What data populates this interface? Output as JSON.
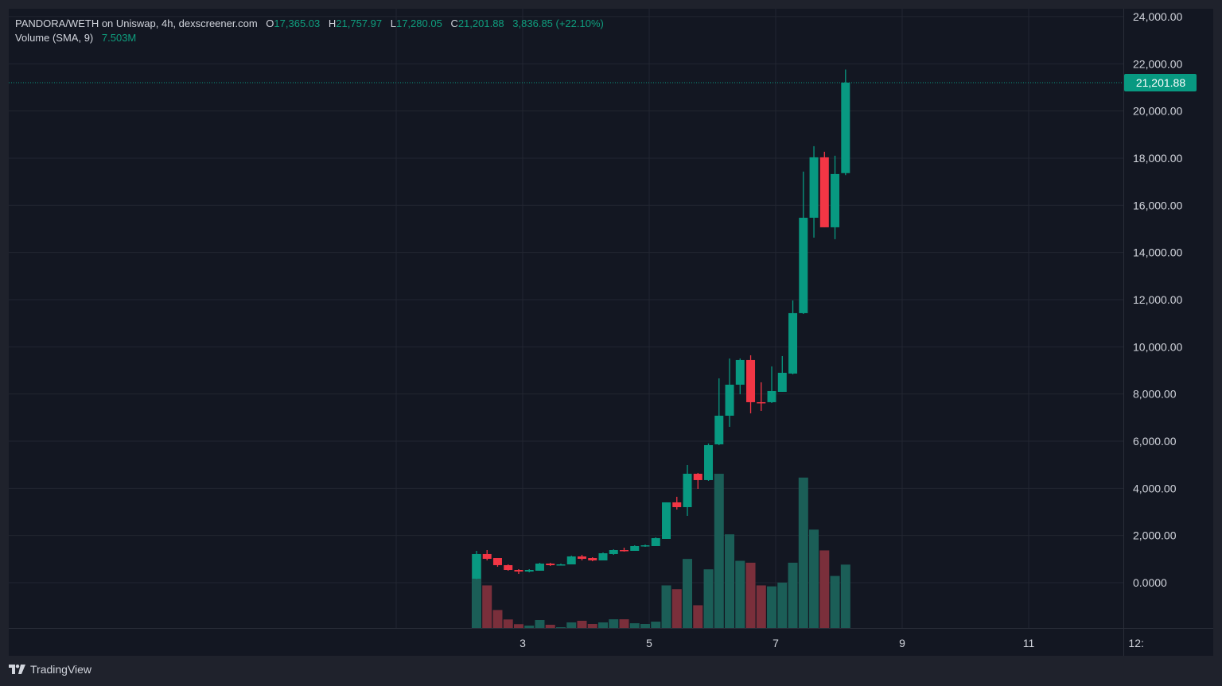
{
  "legend": {
    "symbol": "PANDORA/WETH on Uniswap, 4h, dexscreener.com",
    "o_label": "O",
    "o_value": "17,365.03",
    "h_label": "H",
    "h_value": "21,757.97",
    "l_label": "L",
    "l_value": "17,280.05",
    "c_label": "C",
    "c_value": "21,201.88",
    "change": "3,836.85 (+22.10%)",
    "volume_label": "Volume (SMA, 9)",
    "volume_value": "7.503M"
  },
  "footer": {
    "brand": "TradingView"
  },
  "colors": {
    "up": "#089981",
    "down": "#f23645",
    "up_vol": "#1b5e57",
    "down_vol": "#7a2f3b",
    "bg": "#131722",
    "grid": "#222631",
    "text": "#d1d4dc"
  },
  "chart_data": {
    "type": "candlestick",
    "title": "PANDORA/WETH on Uniswap, 4h",
    "interval": "4h",
    "last_price_label": "21,201.88",
    "y_ticks": [
      "24,000.00",
      "22,000.00",
      "20,000.00",
      "18,000.00",
      "16,000.00",
      "14,000.00",
      "12,000.00",
      "10,000.00",
      "8,000.00",
      "6,000.00",
      "4,000.00",
      "2,000.00",
      "0.0000"
    ],
    "y_tick_values": [
      24000,
      22000,
      20000,
      18000,
      16000,
      14000,
      12000,
      10000,
      8000,
      6000,
      4000,
      2000,
      0
    ],
    "ylim": [
      -1900,
      24400
    ],
    "x_ticks": [
      {
        "label": "3",
        "day": 3
      },
      {
        "label": "5",
        "day": 5
      },
      {
        "label": "7",
        "day": 7
      },
      {
        "label": "9",
        "day": 9
      },
      {
        "label": "11",
        "day": 11
      },
      {
        "label": "12:",
        "day": 12.7
      }
    ],
    "first_candle_day": 2.27,
    "candle_step_days": 0.1667,
    "candles": [
      [
        169,
        1348,
        150,
        1214
      ],
      [
        1214,
        1382,
        944,
        1011
      ],
      [
        1045,
        1045,
        674,
        742
      ],
      [
        742,
        775,
        506,
        539
      ],
      [
        539,
        573,
        371,
        472
      ],
      [
        472,
        573,
        438,
        539
      ],
      [
        506,
        843,
        506,
        809
      ],
      [
        809,
        843,
        708,
        742
      ],
      [
        742,
        809,
        742,
        775
      ],
      [
        775,
        1146,
        775,
        1112
      ],
      [
        1112,
        1180,
        944,
        1011
      ],
      [
        1045,
        1079,
        910,
        944
      ],
      [
        944,
        1281,
        944,
        1247
      ],
      [
        1214,
        1416,
        1180,
        1382
      ],
      [
        1382,
        1483,
        1315,
        1348
      ],
      [
        1348,
        1584,
        1348,
        1551
      ],
      [
        1551,
        1618,
        1517,
        1584
      ],
      [
        1551,
        1921,
        1551,
        1888
      ],
      [
        1854,
        3405,
        1854,
        3405
      ],
      [
        3405,
        3641,
        3101,
        3202
      ],
      [
        3202,
        4989,
        2832,
        4618
      ],
      [
        4618,
        4652,
        3978,
        4349
      ],
      [
        4349,
        5899,
        4315,
        5832
      ],
      [
        5866,
        8663,
        5832,
        7079
      ],
      [
        7079,
        9506,
        6607,
        8394
      ],
      [
        8394,
        9506,
        7989,
        9439
      ],
      [
        9439,
        9641,
        7180,
        7652
      ],
      [
        7652,
        8495,
        7281,
        7618
      ],
      [
        7652,
        9169,
        7618,
        8124
      ],
      [
        8090,
        9607,
        8090,
        8899
      ],
      [
        8866,
        11967,
        8832,
        11428
      ],
      [
        11428,
        17428,
        11394,
        15473
      ],
      [
        15473,
        18507,
        14630,
        18035
      ],
      [
        18035,
        18271,
        15068,
        15068
      ],
      [
        15068,
        18102,
        14563,
        17327
      ],
      [
        17365.03,
        21757.97,
        17280.05,
        21201.88
      ]
    ],
    "volumes_millions": [
      7.8,
      4.5,
      1.9,
      0.9,
      0.4,
      0.25,
      0.84,
      0.34,
      0.08,
      0.59,
      0.76,
      0.42,
      0.59,
      0.92,
      0.92,
      0.5,
      0.42,
      0.67,
      4.5,
      4.1,
      7.3,
      2.4,
      6.2,
      16.3,
      9.9,
      7.1,
      6.9,
      4.5,
      4.4,
      4.8,
      6.9,
      15.9,
      10.4,
      8.2,
      5.5,
      6.7
    ]
  }
}
